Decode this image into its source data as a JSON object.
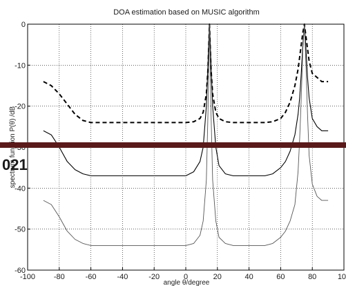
{
  "chart_data": {
    "type": "line",
    "title": "DOA estimation based on MUSIC algorithm",
    "xlabel": "angle θ/degree",
    "ylabel": "spectrum function P(θ) /dB",
    "xlim": [
      -100,
      100
    ],
    "ylim": [
      -60,
      0
    ],
    "xticks": [
      "-100",
      "-80",
      "-60",
      "-40",
      "-20",
      "0",
      "20",
      "40",
      "60",
      "80",
      "100"
    ],
    "yticks": [
      "0",
      "-10",
      "-20",
      "-30",
      "-40",
      "-50",
      "-60"
    ],
    "grid": true,
    "legend": "none",
    "series": [
      {
        "style": "dashed",
        "color": "#000000",
        "x": [
          -90,
          -85,
          -80,
          -75,
          -70,
          -65,
          -60,
          -50,
          -40,
          -30,
          -20,
          -10,
          0,
          5,
          9,
          11,
          13,
          14,
          15,
          16,
          17,
          19,
          21,
          25,
          30,
          40,
          50,
          55,
          60,
          63,
          66,
          69,
          71,
          72,
          73,
          74,
          75,
          76,
          77,
          78,
          80,
          83,
          86,
          88,
          90
        ],
        "y": [
          -14,
          -15,
          -17,
          -19.5,
          -22,
          -23.5,
          -24,
          -24,
          -24,
          -24,
          -24,
          -24,
          -24,
          -23.8,
          -23,
          -21.5,
          -17,
          -11,
          0,
          -11,
          -17,
          -21.5,
          -23,
          -23.8,
          -24,
          -24,
          -24,
          -23.8,
          -23,
          -21.5,
          -19,
          -15,
          -11,
          -8,
          -5,
          -2,
          0,
          -3,
          -6,
          -9,
          -12,
          -13,
          -14,
          -14,
          -14
        ]
      },
      {
        "style": "solid",
        "color": "#000000",
        "x": [
          -90,
          -85,
          -80,
          -75,
          -70,
          -65,
          -60,
          -50,
          -40,
          -30,
          -20,
          -10,
          0,
          5,
          9,
          11,
          13,
          14,
          15,
          16,
          17,
          19,
          21,
          25,
          30,
          40,
          50,
          55,
          60,
          63,
          66,
          69,
          71,
          72,
          73,
          74,
          75,
          76,
          77,
          78,
          80,
          83,
          86,
          88,
          90
        ],
        "y": [
          -26,
          -27,
          -30,
          -33.5,
          -35.5,
          -36.5,
          -37,
          -37,
          -37,
          -37,
          -37,
          -37,
          -37,
          -36,
          -33.5,
          -30,
          -20,
          -10,
          0,
          -10,
          -20,
          -30,
          -34.5,
          -36.5,
          -37,
          -37,
          -37,
          -36.5,
          -35,
          -33.5,
          -31,
          -27,
          -22,
          -18,
          -12,
          -5,
          0,
          -6,
          -13,
          -18,
          -23,
          -25,
          -26,
          -26,
          -26
        ]
      },
      {
        "style": "solid-thin",
        "color": "#555555",
        "x": [
          -90,
          -85,
          -80,
          -75,
          -70,
          -65,
          -60,
          -50,
          -40,
          -30,
          -20,
          -10,
          0,
          5,
          9,
          11,
          13,
          14,
          15,
          16,
          17,
          19,
          21,
          25,
          30,
          40,
          50,
          55,
          60,
          63,
          66,
          69,
          71,
          72,
          73,
          74,
          75,
          76,
          77,
          78,
          80,
          83,
          86,
          88,
          90
        ],
        "y": [
          -43,
          -44,
          -47,
          -50.5,
          -52.5,
          -53.5,
          -54,
          -54,
          -54,
          -54,
          -54,
          -54,
          -54,
          -53.5,
          -51.5,
          -48,
          -38,
          -22,
          0,
          -22,
          -38,
          -48,
          -52,
          -53.5,
          -54,
          -54,
          -54,
          -53.5,
          -52,
          -50.5,
          -48,
          -44,
          -36,
          -28,
          -18,
          -6,
          0,
          -10,
          -22,
          -32,
          -39,
          -42,
          -43,
          -43,
          -43
        ]
      }
    ]
  },
  "watermark": {
    "text": "021",
    "bar_color": "#5a1a1a"
  }
}
